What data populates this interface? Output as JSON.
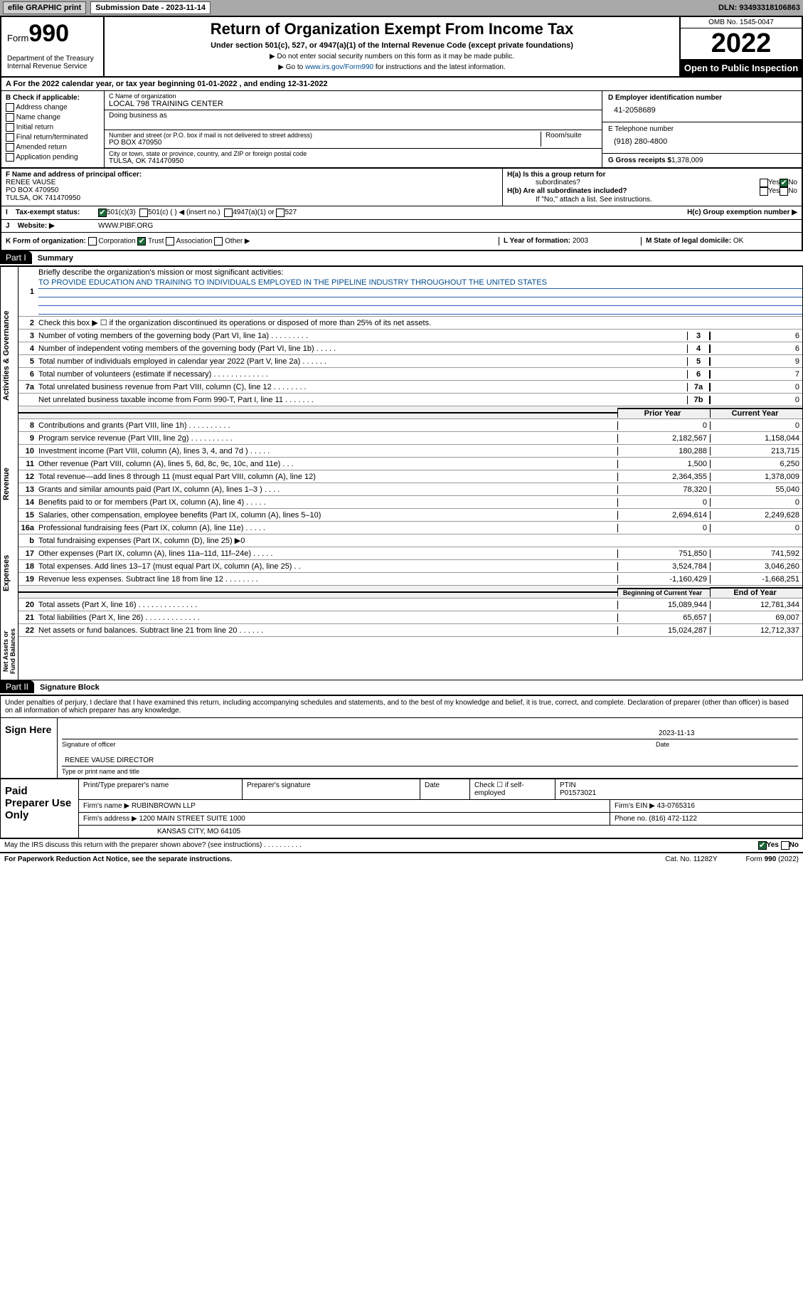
{
  "topbar": {
    "efile": "efile GRAPHIC print",
    "subdate_label": "Submission Date - 2023-11-14",
    "dln": "DLN: 93493318106863"
  },
  "header": {
    "form_prefix": "Form",
    "form_num": "990",
    "dept": "Department of the Treasury\nInternal Revenue Service",
    "title": "Return of Organization Exempt From Income Tax",
    "under": "Under section 501(c), 527, or 4947(a)(1) of the Internal Revenue Code (except private foundations)",
    "note1": "▶ Do not enter social security numbers on this form as it may be made public.",
    "note2_pre": "▶ Go to ",
    "note2_link": "www.irs.gov/Form990",
    "note2_post": " for instructions and the latest information.",
    "omb": "OMB No. 1545-0047",
    "year": "2022",
    "open": "Open to Public Inspection"
  },
  "rowA": "A For the 2022 calendar year, or tax year beginning 01-01-2022   , and ending 12-31-2022",
  "B": {
    "hdr": "B Check if applicable:",
    "items": [
      "Address change",
      "Name change",
      "Initial return",
      "Final return/terminated",
      "Amended return",
      "Application pending"
    ]
  },
  "C": {
    "name_lbl": "C Name of organization",
    "name": "LOCAL 798 TRAINING CENTER",
    "dba": "Doing business as",
    "addr_lbl": "Number and street (or P.O. box if mail is not delivered to street address)",
    "room": "Room/suite",
    "addr": "PO BOX 470950",
    "city_lbl": "City or town, state or province, country, and ZIP or foreign postal code",
    "city": "TULSA, OK  741470950"
  },
  "D": {
    "ein_lbl": "D Employer identification number",
    "ein": "41-2058689",
    "tel_lbl": "E Telephone number",
    "tel": "(918) 280-4800",
    "gross_lbl": "G Gross receipts $",
    "gross": "1,378,009"
  },
  "F": {
    "lbl": "F Name and address of principal officer:",
    "name": "RENEE VAUSE",
    "addr": "PO BOX 470950",
    "city": "TULSA, OK  741470950"
  },
  "H": {
    "ha": "H(a)  Is this a group return for",
    "ha2": "subordinates?",
    "ha_yes": "Yes",
    "ha_no": "No",
    "hb": "H(b)  Are all subordinates included?",
    "hb_yes": "Yes",
    "hb_no": "No",
    "hb_note": "If \"No,\" attach a list. See instructions.",
    "hc": "H(c)  Group exemption number ▶"
  },
  "I": {
    "lbl": "Tax-exempt status:",
    "opts": [
      "501(c)(3)",
      "501(c) (  ) ◀ (insert no.)",
      "4947(a)(1) or",
      "527"
    ]
  },
  "J": {
    "lbl": "Website: ▶",
    "val": "WWW.PIBF.ORG"
  },
  "K": {
    "lbl": "K Form of organization:",
    "opts": [
      "Corporation",
      "Trust",
      "Association",
      "Other ▶"
    ],
    "year_lbl": "L Year of formation:",
    "year": "2003",
    "state_lbl": "M State of legal domicile:",
    "state": "OK"
  },
  "partI": {
    "num": "Part I",
    "title": "Summary"
  },
  "summary": {
    "q1_lbl": "Briefly describe the organization's mission or most significant activities:",
    "q1_mission": "TO PROVIDE EDUCATION AND TRAINING TO INDIVIDUALS EMPLOYED IN THE PIPELINE INDUSTRY THROUGHOUT THE UNITED STATES",
    "q2": "Check this box ▶ ☐  if the organization discontinued its operations or disposed of more than 25% of its net assets.",
    "rows_gov": [
      {
        "n": "3",
        "t": "Number of voting members of the governing body (Part VI, line 1a)  .   .   .   .   .   .   .   .   .",
        "r": "3",
        "v": "6"
      },
      {
        "n": "4",
        "t": "Number of independent voting members of the governing body (Part VI, line 1b)  .   .   .   .   .",
        "r": "4",
        "v": "6"
      },
      {
        "n": "5",
        "t": "Total number of individuals employed in calendar year 2022 (Part V, line 2a)   .   .   .   .   .   .",
        "r": "5",
        "v": "9"
      },
      {
        "n": "6",
        "t": "Total number of volunteers (estimate if necessary)   .   .   .   .   .   .   .   .   .   .   .   .   .",
        "r": "6",
        "v": "7"
      },
      {
        "n": "7a",
        "t": "Total unrelated business revenue from Part VIII, column (C), line 12  .   .   .   .   .   .   .   .",
        "r": "7a",
        "v": "0"
      },
      {
        "n": "",
        "t": "Net unrelated business taxable income from Form 990-T, Part I, line 11   .   .   .   .   .   .   .",
        "r": "7b",
        "v": "0"
      }
    ],
    "hdr_prior": "Prior Year",
    "hdr_curr": "Current Year",
    "rows_rev": [
      {
        "n": "8",
        "t": "Contributions and grants (Part VIII, line 1h)   .   .   .   .   .   .   .   .   .   .",
        "p": "0",
        "c": "0"
      },
      {
        "n": "9",
        "t": "Program service revenue (Part VIII, line 2g)   .   .   .   .   .   .   .   .   .   .",
        "p": "2,182,567",
        "c": "1,158,044"
      },
      {
        "n": "10",
        "t": "Investment income (Part VIII, column (A), lines 3, 4, and 7d )   .   .   .   .   .",
        "p": "180,288",
        "c": "213,715"
      },
      {
        "n": "11",
        "t": "Other revenue (Part VIII, column (A), lines 5, 6d, 8c, 9c, 10c, and 11e)   .   .   .",
        "p": "1,500",
        "c": "6,250"
      },
      {
        "n": "12",
        "t": "Total revenue—add lines 8 through 11 (must equal Part VIII, column (A), line 12)",
        "p": "2,364,355",
        "c": "1,378,009"
      }
    ],
    "rows_exp": [
      {
        "n": "13",
        "t": "Grants and similar amounts paid (Part IX, column (A), lines 1–3 )   .   .   .   .",
        "p": "78,320",
        "c": "55,040"
      },
      {
        "n": "14",
        "t": "Benefits paid to or for members (Part IX, column (A), line 4)   .   .   .   .   .",
        "p": "0",
        "c": "0"
      },
      {
        "n": "15",
        "t": "Salaries, other compensation, employee benefits (Part IX, column (A), lines 5–10)",
        "p": "2,694,614",
        "c": "2,249,628"
      },
      {
        "n": "16a",
        "t": "Professional fundraising fees (Part IX, column (A), line 11e)   .   .   .   .   .",
        "p": "0",
        "c": "0"
      },
      {
        "n": "b",
        "t": "Total fundraising expenses (Part IX, column (D), line 25) ▶0",
        "p": "",
        "c": "",
        "grey": true
      },
      {
        "n": "17",
        "t": "Other expenses (Part IX, column (A), lines 11a–11d, 11f–24e)   .   .   .   .   .",
        "p": "751,850",
        "c": "741,592"
      },
      {
        "n": "18",
        "t": "Total expenses. Add lines 13–17 (must equal Part IX, column (A), line 25)   .   .",
        "p": "3,524,784",
        "c": "3,046,260"
      },
      {
        "n": "19",
        "t": "Revenue less expenses. Subtract line 18 from line 12   .   .   .   .   .   .   .   .",
        "p": "-1,160,429",
        "c": "-1,668,251"
      }
    ],
    "hdr_beg": "Beginning of Current Year",
    "hdr_end": "End of Year",
    "rows_net": [
      {
        "n": "20",
        "t": "Total assets (Part X, line 16)   .   .   .   .   .   .   .   .   .   .   .   .   .   .",
        "p": "15,089,944",
        "c": "12,781,344"
      },
      {
        "n": "21",
        "t": "Total liabilities (Part X, line 26)   .   .   .   .   .   .   .   .   .   .   .   .   .",
        "p": "65,657",
        "c": "69,007"
      },
      {
        "n": "22",
        "t": "Net assets or fund balances. Subtract line 21 from line 20   .   .   .   .   .   .",
        "p": "15,024,287",
        "c": "12,712,337"
      }
    ]
  },
  "vtabs": {
    "gov": "Activities & Governance",
    "rev": "Revenue",
    "exp": "Expenses",
    "net": "Net Assets or\nFund Balances"
  },
  "partII": {
    "num": "Part II",
    "title": "Signature Block"
  },
  "sig": {
    "decl": "Under penalties of perjury, I declare that I have examined this return, including accompanying schedules and statements, and to the best of my knowledge and belief, it is true, correct, and complete. Declaration of preparer (other than officer) is based on all information of which preparer has any knowledge.",
    "sign_here": "Sign Here",
    "sig_officer": "Signature of officer",
    "sig_date": "2023-11-13",
    "date_lbl": "Date",
    "name_title": "RENEE VAUSE  DIRECTOR",
    "type_lbl": "Type or print name and title"
  },
  "paid": {
    "title": "Paid Preparer Use Only",
    "h1": "Print/Type preparer's name",
    "h2": "Preparer's signature",
    "h3": "Date",
    "h4_pre": "Check ☐ if self-employed",
    "h5_lbl": "PTIN",
    "h5": "P01573021",
    "firm_lbl": "Firm's name   ▶",
    "firm": "RUBINBROWN LLP",
    "ein_lbl": "Firm's EIN ▶",
    "ein": "43-0765316",
    "addr_lbl": "Firm's address ▶",
    "addr": "1200 MAIN STREET SUITE 1000",
    "addr2": "KANSAS CITY, MO  64105",
    "phone_lbl": "Phone no.",
    "phone": "(816) 472-1122"
  },
  "foot": {
    "irs": "May the IRS discuss this return with the preparer shown above? (see instructions)   .   .   .   .   .   .   .   .   .   .",
    "yes": "Yes",
    "no": "No",
    "paperwork": "For Paperwork Reduction Act Notice, see the separate instructions.",
    "cat": "Cat. No. 11282Y",
    "form": "Form 990 (2022)"
  }
}
